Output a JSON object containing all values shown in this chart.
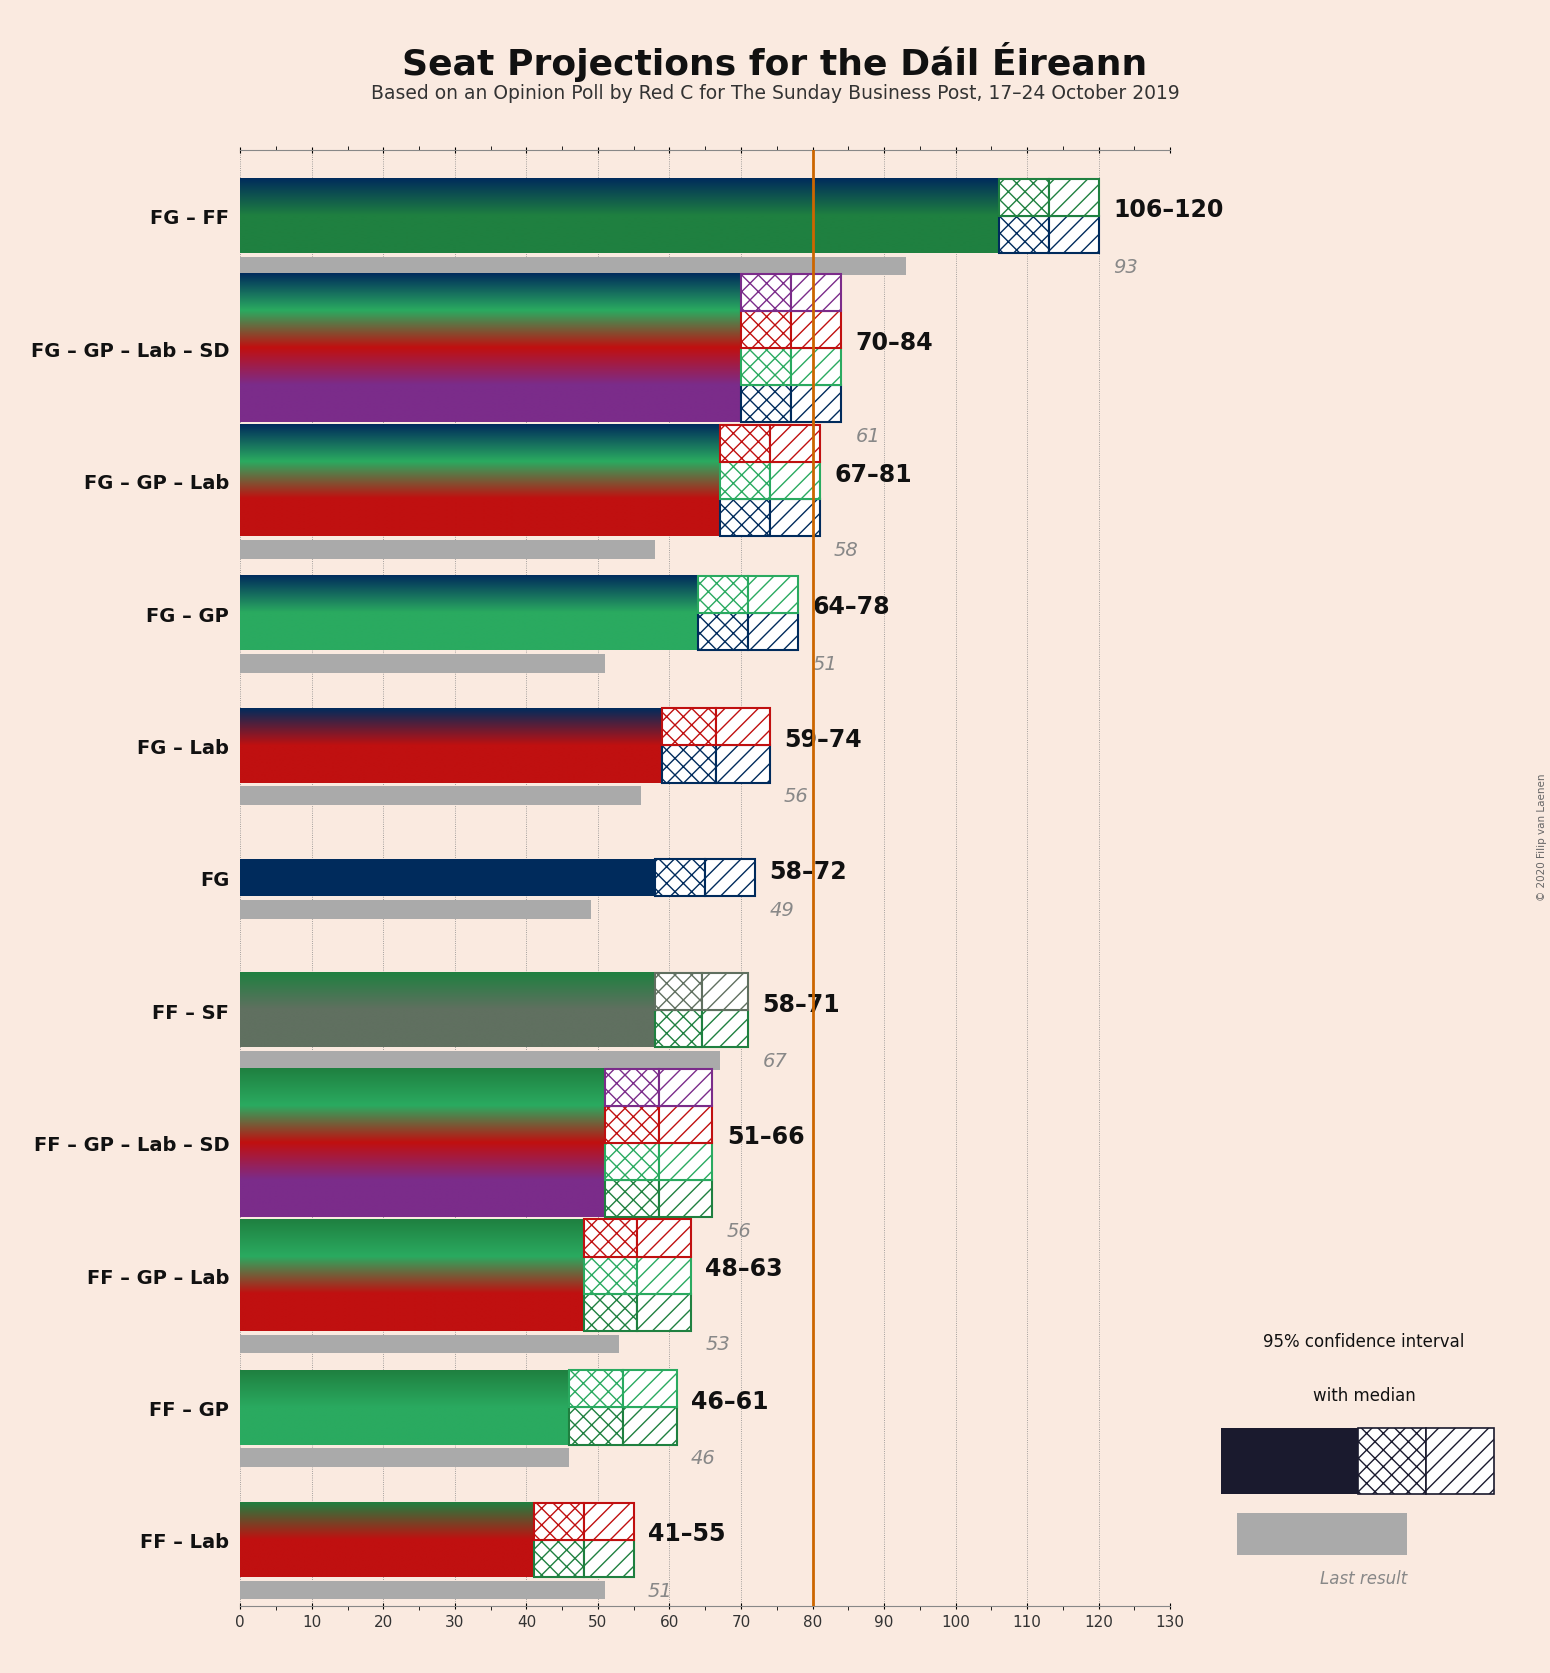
{
  "title": "Seat Projections for the Dáil Éireann",
  "subtitle": "Based on an Opinion Poll by Red C for The Sunday Business Post, 17–24 October 2019",
  "copyright": "© 2020 Filip van Laenen",
  "background_color": "#faeae0",
  "majority_line": 80,
  "x_max": 130,
  "x_ticks": [
    0,
    10,
    20,
    30,
    40,
    50,
    60,
    70,
    80,
    90,
    100,
    110,
    120,
    130
  ],
  "coalitions": [
    {
      "name": "FG – FF",
      "range_low": 106,
      "range_high": 120,
      "last_result": 93,
      "stripes": [
        {
          "color_left": "#002147",
          "color_right": "#002147"
        },
        {
          "color_left": "#1a7a3c",
          "color_right": "#1a7a3c"
        }
      ],
      "hatch_colors": [
        "#002147",
        "#1a7a3c"
      ]
    },
    {
      "name": "FG – GP – Lab – SD",
      "range_low": 70,
      "range_high": 84,
      "last_result": 61,
      "stripes": [
        {
          "color_left": "#002147",
          "color_right": "#002147"
        },
        {
          "color_left": "#1a7a3c",
          "color_right": "#1a7a3c"
        },
        {
          "color_left": "#cc0000",
          "color_right": "#cc0000"
        },
        {
          "color_left": "#7b2c8a",
          "color_right": "#7b2c8a"
        }
      ],
      "hatch_colors": [
        "#002147",
        "#1a7a3c",
        "#cc0000",
        "#7b2c8a"
      ]
    },
    {
      "name": "FG – GP – Lab",
      "range_low": 67,
      "range_high": 81,
      "last_result": 58,
      "stripes": [
        {
          "color_left": "#002147",
          "color_right": "#002147"
        },
        {
          "color_left": "#1a7a3c",
          "color_right": "#1a7a3c"
        },
        {
          "color_left": "#cc0000",
          "color_right": "#cc0000"
        }
      ],
      "hatch_colors": [
        "#002147",
        "#1a7a3c",
        "#cc0000"
      ]
    },
    {
      "name": "FG – GP",
      "range_low": 64,
      "range_high": 78,
      "last_result": 51,
      "stripes": [
        {
          "color_left": "#002147",
          "color_right": "#002147"
        },
        {
          "color_left": "#1a7a3c",
          "color_right": "#1a7a3c"
        }
      ],
      "hatch_colors": [
        "#002147",
        "#1a7a3c"
      ]
    },
    {
      "name": "FG – Lab",
      "range_low": 59,
      "range_high": 74,
      "last_result": 56,
      "stripes": [
        {
          "color_left": "#002147",
          "color_right": "#002147"
        },
        {
          "color_left": "#cc0000",
          "color_right": "#cc0000"
        }
      ],
      "hatch_colors": [
        "#002147",
        "#cc0000"
      ]
    },
    {
      "name": "FG",
      "range_low": 58,
      "range_high": 72,
      "last_result": 49,
      "stripes": [
        {
          "color_left": "#002147",
          "color_right": "#002147"
        }
      ],
      "hatch_colors": [
        "#002147"
      ]
    },
    {
      "name": "FF – SF",
      "range_low": 58,
      "range_high": 71,
      "last_result": 67,
      "stripes": [
        {
          "color_left": "#1a7a3c",
          "color_right": "#1a7a3c"
        },
        {
          "color_left": "#555555",
          "color_right": "#555555"
        }
      ],
      "hatch_colors": [
        "#1a7a3c",
        "#888888"
      ]
    },
    {
      "name": "FF – GP – Lab – SD",
      "range_low": 51,
      "range_high": 66,
      "last_result": 56,
      "stripes": [
        {
          "color_left": "#1a7a3c",
          "color_right": "#1a7a3c"
        },
        {
          "color_left": "#2d9e5a",
          "color_right": "#2d9e5a"
        },
        {
          "color_left": "#cc0000",
          "color_right": "#cc0000"
        },
        {
          "color_left": "#7b2c8a",
          "color_right": "#7b2c8a"
        }
      ],
      "hatch_colors": [
        "#1a7a3c",
        "#2d9e5a",
        "#cc0000",
        "#7b2c8a"
      ]
    },
    {
      "name": "FF – GP – Lab",
      "range_low": 48,
      "range_high": 63,
      "last_result": 53,
      "stripes": [
        {
          "color_left": "#1a7a3c",
          "color_right": "#1a7a3c"
        },
        {
          "color_left": "#2d9e5a",
          "color_right": "#2d9e5a"
        },
        {
          "color_left": "#cc0000",
          "color_right": "#cc0000"
        }
      ],
      "hatch_colors": [
        "#1a7a3c",
        "#2d9e5a",
        "#cc0000"
      ]
    },
    {
      "name": "FF – GP",
      "range_low": 46,
      "range_high": 61,
      "last_result": 46,
      "stripes": [
        {
          "color_left": "#1a7a3c",
          "color_right": "#1a7a3c"
        },
        {
          "color_left": "#2d9e5a",
          "color_right": "#2d9e5a"
        }
      ],
      "hatch_colors": [
        "#1a7a3c",
        "#2d9e5a"
      ]
    },
    {
      "name": "FF – Lab",
      "range_low": 41,
      "range_high": 55,
      "last_result": 51,
      "stripes": [
        {
          "color_left": "#1a7a3c",
          "color_right": "#1a7a3c"
        },
        {
          "color_left": "#cc0000",
          "color_right": "#cc0000"
        }
      ],
      "hatch_colors": [
        "#1a7a3c",
        "#cc0000"
      ]
    }
  ]
}
